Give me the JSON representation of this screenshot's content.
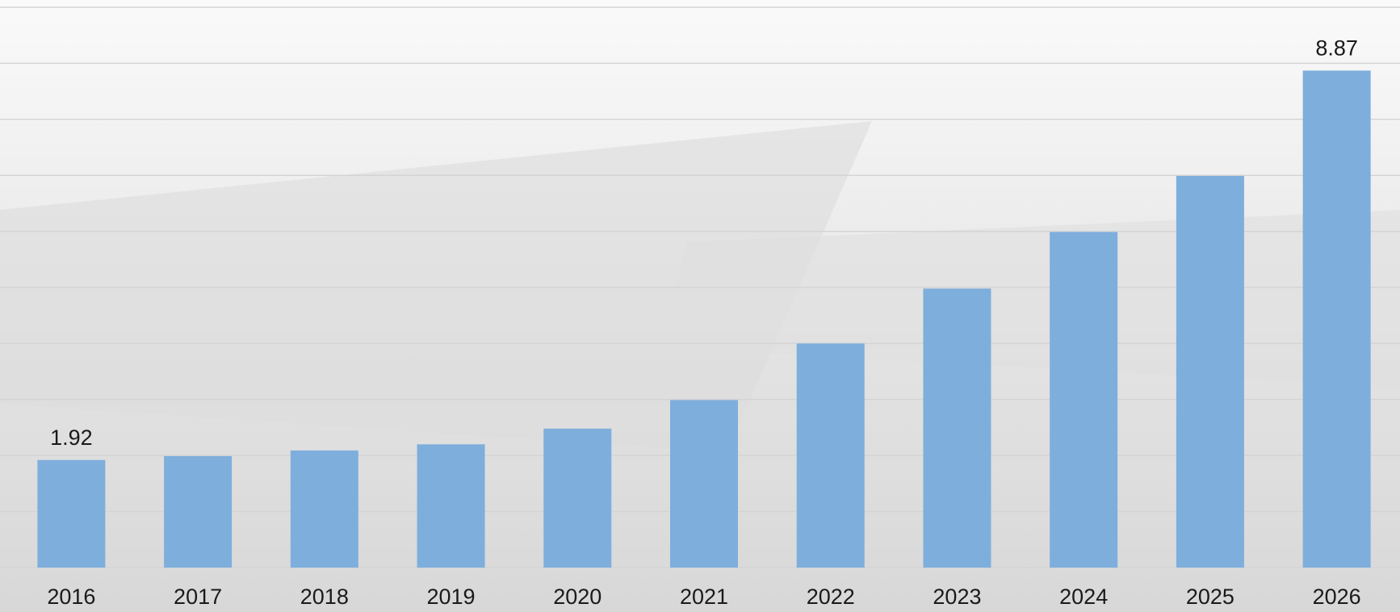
{
  "chart_data": {
    "type": "bar",
    "categories": [
      "2016",
      "2017",
      "2018",
      "2019",
      "2020",
      "2021",
      "2022",
      "2023",
      "2024",
      "2025",
      "2026"
    ],
    "values": [
      1.92,
      1.99,
      2.09,
      2.2,
      2.48,
      2.99,
      4.0,
      4.98,
      5.99,
      6.99,
      8.87
    ],
    "value_labels": [
      "1.92",
      null,
      null,
      null,
      null,
      null,
      null,
      null,
      null,
      null,
      "8.87"
    ],
    "color": "#7eaedc",
    "ylim": [
      0,
      10
    ],
    "yticks": [
      0,
      1,
      2,
      3,
      4,
      5,
      6,
      7,
      8,
      9,
      10
    ],
    "grid": true
  }
}
